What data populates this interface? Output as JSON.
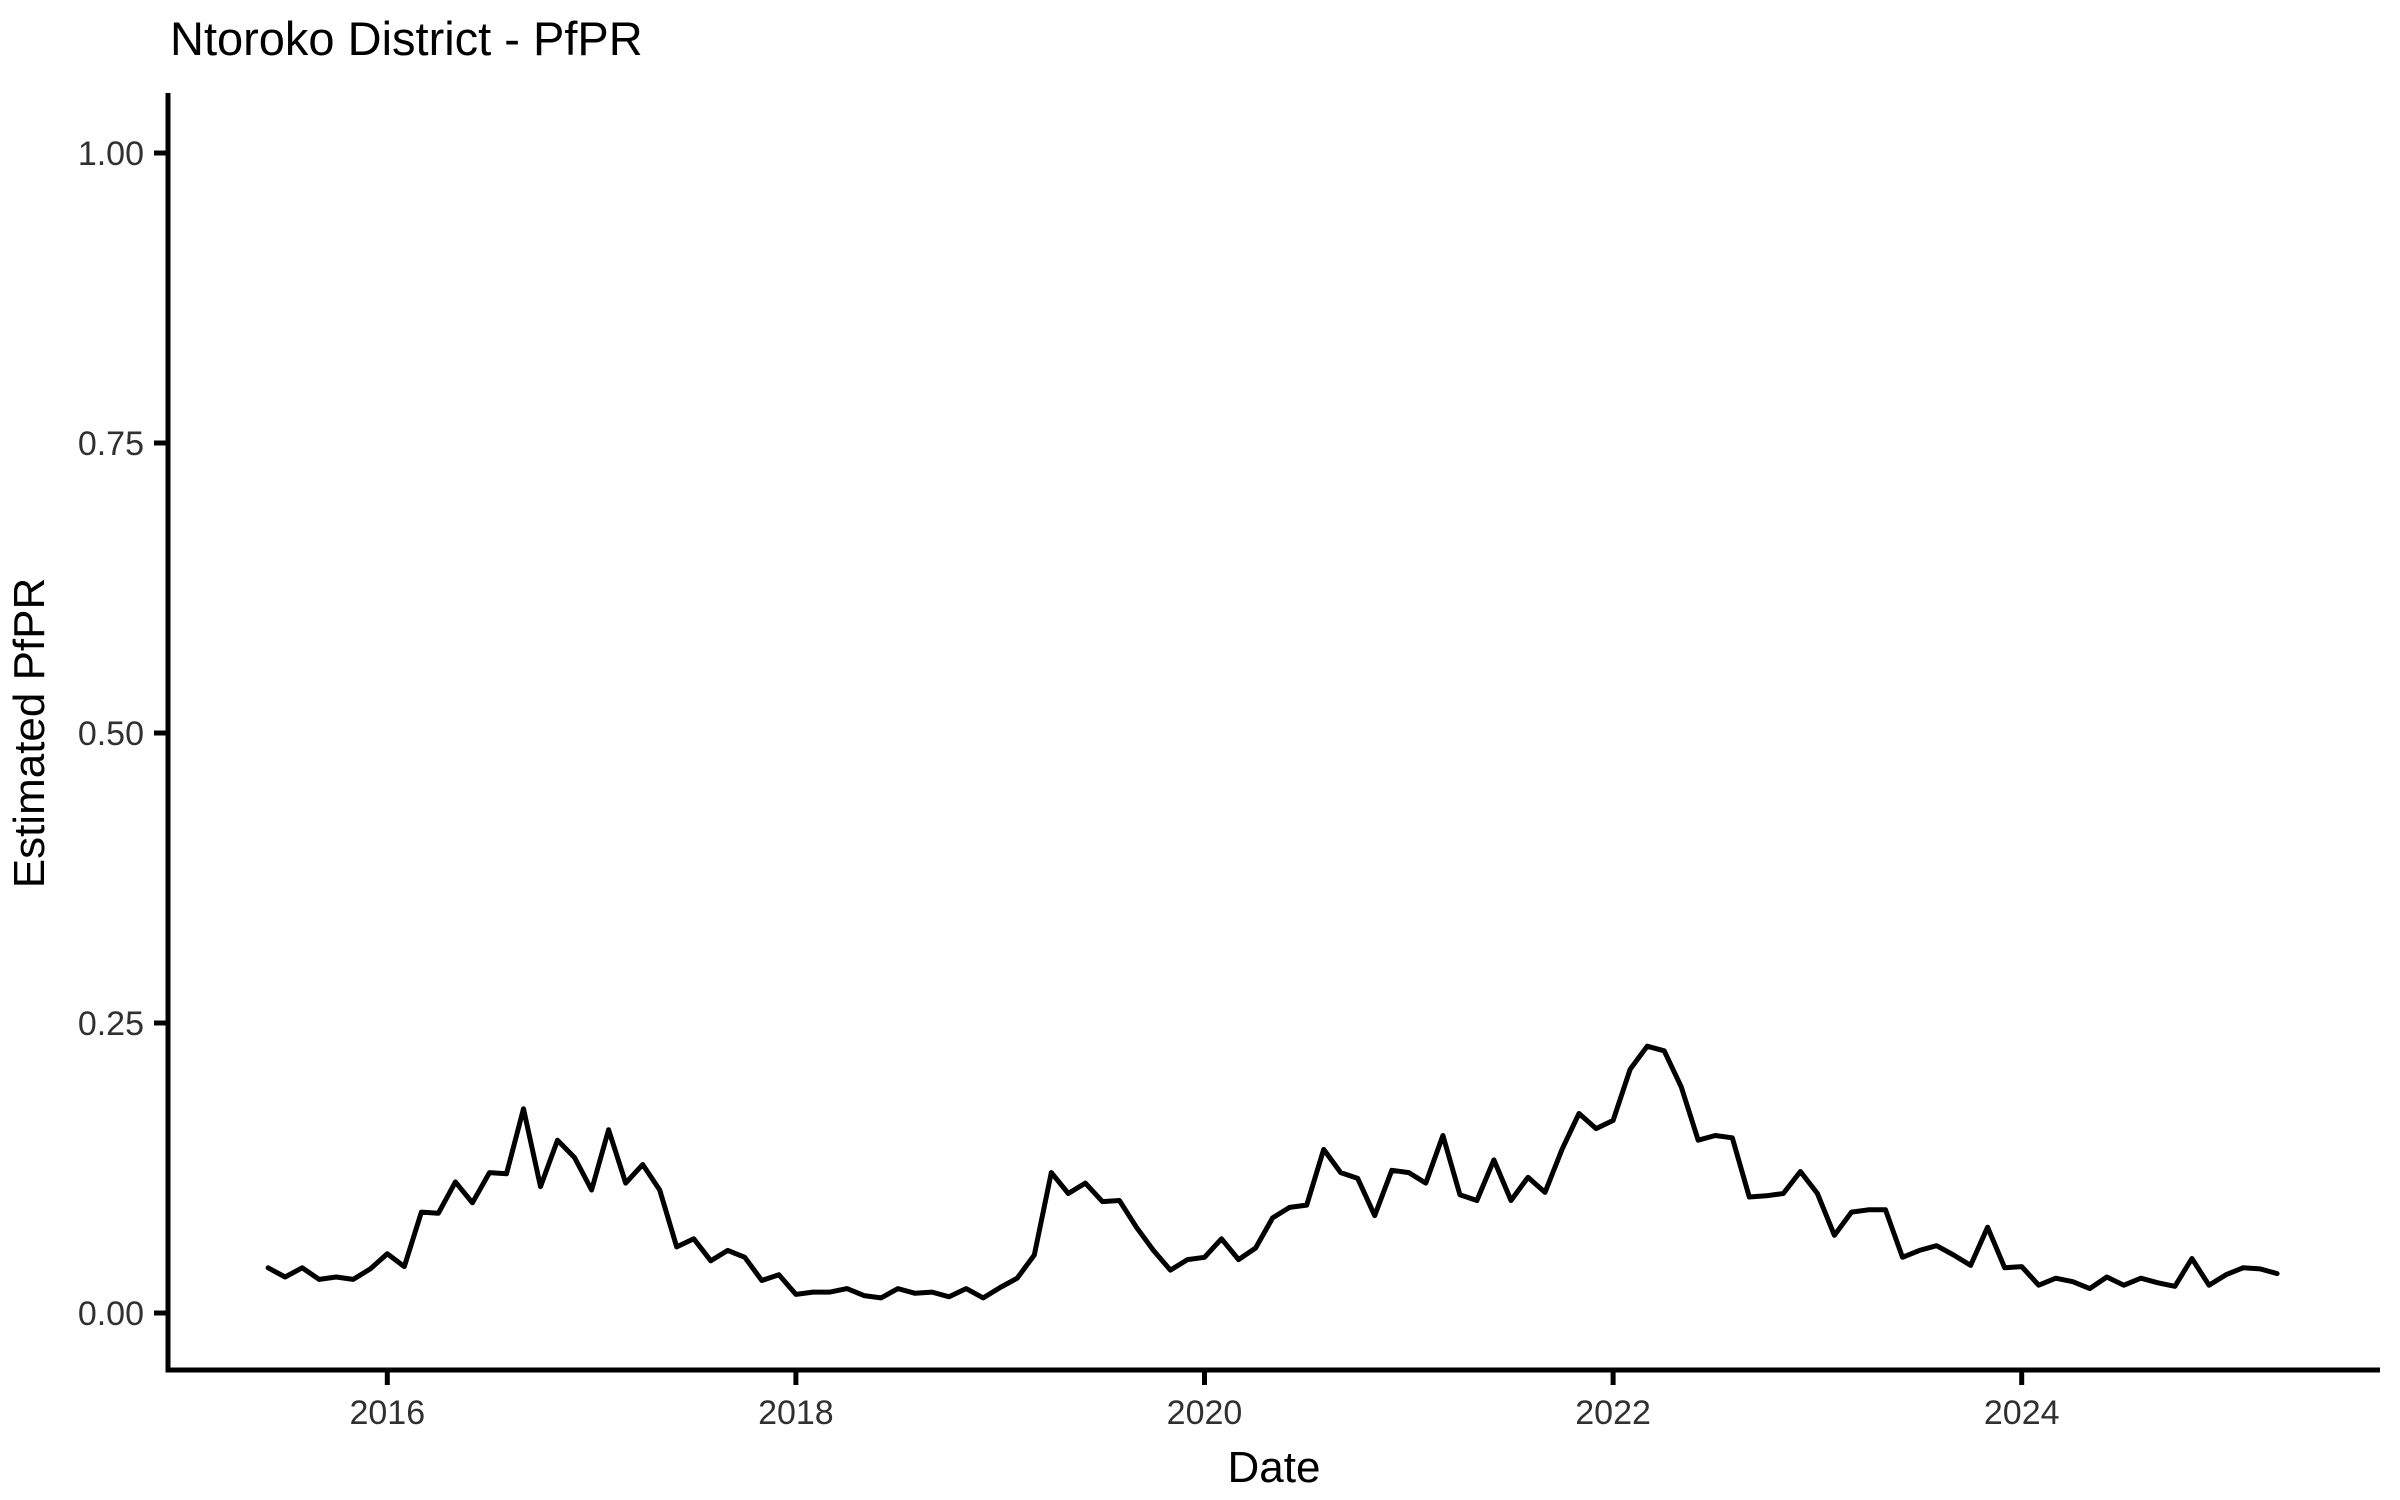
{
  "title": "Ntoroko District - PfPR",
  "x_axis_label": "Date",
  "y_axis_label": "Estimated PfPR",
  "chart_data": {
    "type": "line",
    "title": "Ntoroko District - PfPR",
    "xlabel": "Date",
    "ylabel": "Estimated PfPR",
    "series_name": "Estimated PfPR",
    "line_color": "#000000",
    "background_color": "#ffffff",
    "grid": false,
    "legend": false,
    "frequency": "monthly",
    "x_start": "2015-06",
    "x_end": "2025-04",
    "x_tick_years": [
      2016,
      2018,
      2020,
      2022,
      2024
    ],
    "x_tick_labels": [
      "2016",
      "2018",
      "2020",
      "2022",
      "2024"
    ],
    "y_tick_values": [
      0.0,
      0.25,
      0.5,
      0.75,
      1.0
    ],
    "y_tick_labels": [
      "0.00",
      "0.25",
      "0.50",
      "0.75",
      "1.00"
    ],
    "ylim": [
      -0.05,
      1.05
    ],
    "xlim_years": [
      2014.93,
      2025.75
    ],
    "values": [
      0.039,
      0.031,
      0.039,
      0.029,
      0.031,
      0.029,
      0.038,
      0.051,
      0.04,
      0.087,
      0.086,
      0.113,
      0.095,
      0.121,
      0.12,
      0.176,
      0.109,
      0.149,
      0.134,
      0.106,
      0.158,
      0.112,
      0.128,
      0.106,
      0.057,
      0.064,
      0.045,
      0.054,
      0.048,
      0.028,
      0.033,
      0.016,
      0.018,
      0.018,
      0.021,
      0.015,
      0.013,
      0.021,
      0.017,
      0.018,
      0.014,
      0.021,
      0.013,
      0.022,
      0.03,
      0.05,
      0.121,
      0.103,
      0.112,
      0.096,
      0.097,
      0.074,
      0.054,
      0.037,
      0.046,
      0.048,
      0.064,
      0.046,
      0.056,
      0.082,
      0.091,
      0.093,
      0.141,
      0.121,
      0.116,
      0.084,
      0.123,
      0.121,
      0.112,
      0.153,
      0.102,
      0.097,
      0.132,
      0.097,
      0.117,
      0.104,
      0.141,
      0.172,
      0.159,
      0.166,
      0.21,
      0.23,
      0.226,
      0.195,
      0.149,
      0.153,
      0.151,
      0.1,
      0.101,
      0.103,
      0.122,
      0.103,
      0.067,
      0.087,
      0.089,
      0.089,
      0.048,
      0.054,
      0.058,
      0.05,
      0.041,
      0.074,
      0.039,
      0.04,
      0.024,
      0.03,
      0.027,
      0.021,
      0.031,
      0.024,
      0.03,
      0.026,
      0.023,
      0.047,
      0.024,
      0.033,
      0.039,
      0.038,
      0.034
    ]
  }
}
